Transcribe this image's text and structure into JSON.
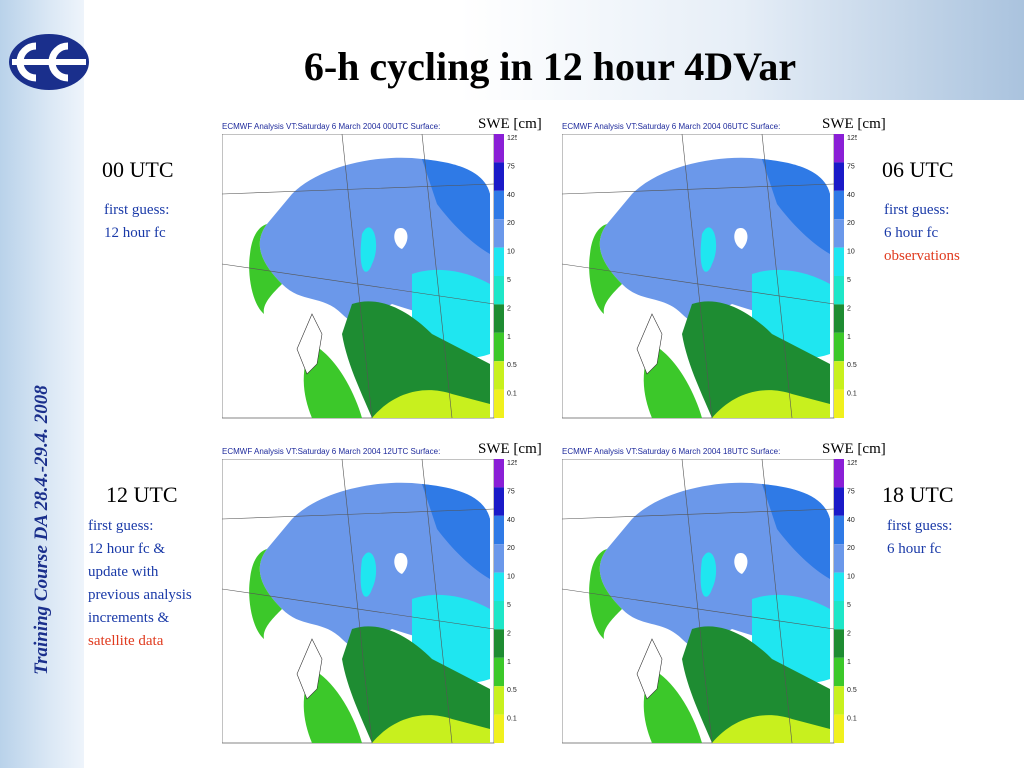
{
  "slide": {
    "title": "6-h cycling in 12 hour 4DVar",
    "vertical_text": "Training Course DA 28.4.-29.4. 2008"
  },
  "colors": {
    "accent_blue": "#1a3aa8",
    "highlight_red": "#e03a1e",
    "logo_blue": "#1a2f8c"
  },
  "legend_values": [
    "125",
    "75",
    "40",
    "20",
    "10",
    "5",
    "2",
    "1",
    "0.5",
    "0.1"
  ],
  "panels": [
    {
      "header": "ECMWF  Analysis VT:Saturday 6 March 2004 00UTC Surface:",
      "swe": "SWE [cm]",
      "time": "00 UTC",
      "notes": [
        "first guess:",
        "12 hour fc"
      ],
      "highlight": []
    },
    {
      "header": "ECMWF  Analysis VT:Saturday 6 March 2004 06UTC Surface:",
      "swe": "SWE [cm]",
      "time": "06 UTC",
      "notes": [
        "first guess:",
        "6 hour fc"
      ],
      "highlight": [
        "observations"
      ]
    },
    {
      "header": "ECMWF  Analysis VT:Saturday 6 March 2004 12UTC Surface:",
      "swe": "SWE [cm]",
      "time": "12 UTC",
      "notes": [
        "first guess:",
        "12 hour fc &",
        "update with",
        "previous analysis",
        "increments &"
      ],
      "highlight": [
        "satellite data"
      ]
    },
    {
      "header": "ECMWF  Analysis VT:Saturday 6 March 2004 18UTC Surface:",
      "swe": "SWE [cm]",
      "time": "18 UTC",
      "notes": [
        "first guess:",
        "6 hour fc"
      ],
      "highlight": []
    }
  ]
}
